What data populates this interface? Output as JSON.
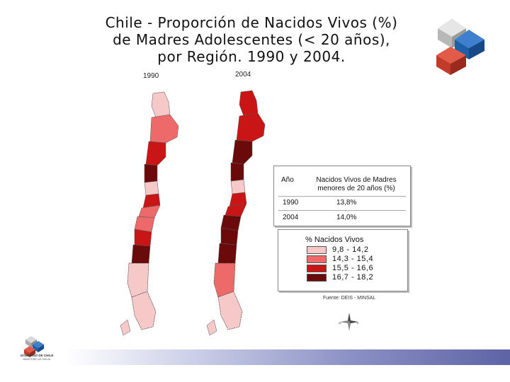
{
  "title": {
    "line1": "Chile - Proporción de Nacidos Vivos (%)",
    "line2": "de Madres Adolescentes (< 20 años),",
    "line3": "por Región.  1990 y 2004."
  },
  "maps": [
    {
      "year_label": "1990"
    },
    {
      "year_label": "2004"
    }
  ],
  "table": {
    "header_year": "Año",
    "header_value_line1": "Nacidos Vivos de Madres",
    "header_value_line2": "menores de 20 años (%)",
    "rows": [
      {
        "year": "1990",
        "value": "13,8%"
      },
      {
        "year": "2004",
        "value": "14,0%"
      }
    ]
  },
  "legend": {
    "title": "% Nacidos Vivos",
    "items": [
      {
        "label": "9,8  - 14,2",
        "color": "#f7c8c8"
      },
      {
        "label": "14,3 - 15,4",
        "color": "#ee6a6a"
      },
      {
        "label": "15,5 - 16,6",
        "color": "#c91515"
      },
      {
        "label": "16,7 - 18,2",
        "color": "#6b0a0a"
      }
    ]
  },
  "source": "Fuente: DEIS - MINSAL",
  "compass": {
    "west": "W",
    "east": "E"
  },
  "colors": {
    "class1": "#f7c8c8",
    "class2": "#ee6a6a",
    "class3": "#c91515",
    "class4": "#6b0a0a",
    "cube_gray": "#c8c8c8",
    "cube_blue": "#1f5fa8",
    "cube_red": "#c23a2a"
  },
  "footer": {
    "org_name": "GOBIERNO DE CHILE",
    "org_sub": "MINISTERIO DE SALUD"
  }
}
